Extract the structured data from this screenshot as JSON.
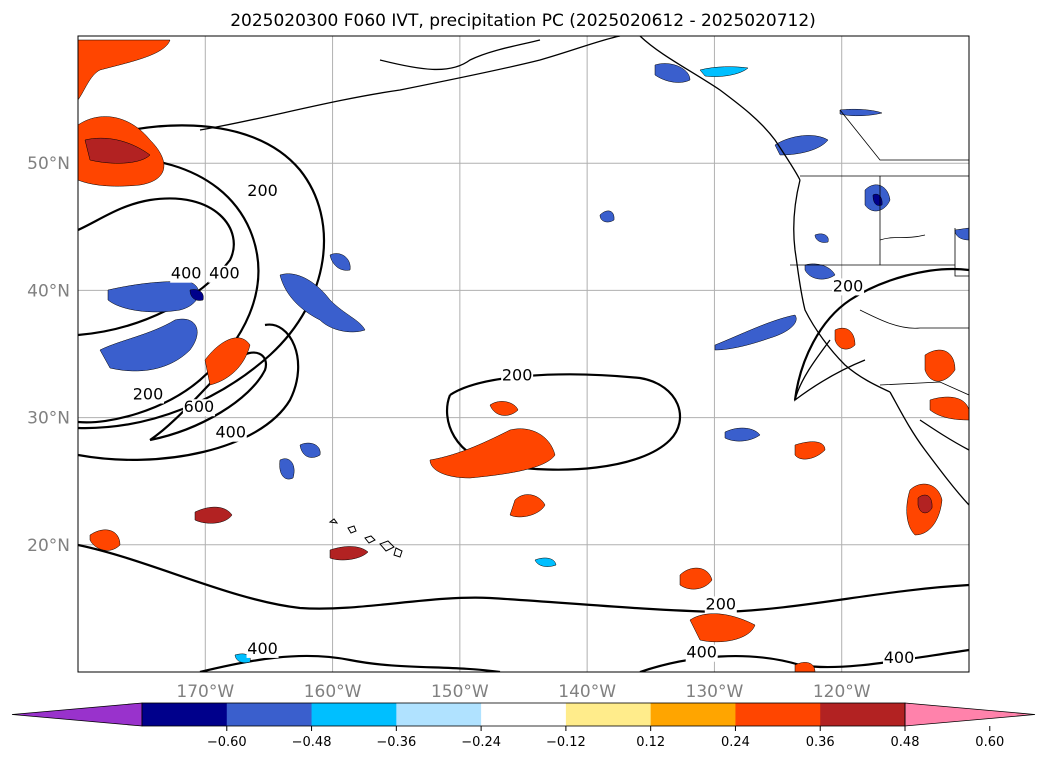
{
  "title": "2025020300 F060 IVT, precipitation PC (2025020612 - 2025020712)",
  "map": {
    "lon_range": [
      -180,
      -110
    ],
    "lat_range": [
      10,
      60
    ],
    "lat_ticks": [
      {
        "value": 50,
        "label": "50°N"
      },
      {
        "value": 40,
        "label": "40°N"
      },
      {
        "value": 30,
        "label": "30°N"
      },
      {
        "value": 20,
        "label": "20°N"
      }
    ],
    "lon_ticks": [
      {
        "value": -170,
        "label": "170°W"
      },
      {
        "value": -160,
        "label": "160°W"
      },
      {
        "value": -150,
        "label": "150°W"
      },
      {
        "value": -140,
        "label": "140°W"
      },
      {
        "value": -130,
        "label": "130°W"
      },
      {
        "value": -120,
        "label": "120°W"
      }
    ],
    "grid": true
  },
  "ivt_contour_labels": [
    {
      "text": "200",
      "lon": -165.5,
      "lat": 47.5
    },
    {
      "text": "400",
      "lon": -171.5,
      "lat": 41.0
    },
    {
      "text": "400",
      "lon": -168.5,
      "lat": 41.0
    },
    {
      "text": "200",
      "lon": -174.5,
      "lat": 31.5
    },
    {
      "text": "600",
      "lon": -170.5,
      "lat": 30.5
    },
    {
      "text": "400",
      "lon": -168.0,
      "lat": 28.5
    },
    {
      "text": "200",
      "lon": -145.5,
      "lat": 33.0
    },
    {
      "text": "200",
      "lon": -119.5,
      "lat": 40.0
    },
    {
      "text": "200",
      "lon": -129.5,
      "lat": 15.0
    },
    {
      "text": "400",
      "lon": -165.5,
      "lat": 11.5
    },
    {
      "text": "400",
      "lon": -131.0,
      "lat": 11.2
    },
    {
      "text": "400",
      "lon": -115.5,
      "lat": 10.8
    }
  ],
  "colorbar": {
    "colors": [
      "#9932cc",
      "#00008b",
      "#3a5fcd",
      "#00bfff",
      "#b0e2ff",
      "#ffffff",
      "#ffec8b",
      "#ffa500",
      "#ff4500",
      "#b22222",
      "#ff82ab"
    ],
    "ticks": [
      "−0.60",
      "−0.48",
      "−0.36",
      "−0.24",
      "−0.12",
      "0.12",
      "0.24",
      "0.36",
      "0.48",
      "0.60"
    ]
  }
}
